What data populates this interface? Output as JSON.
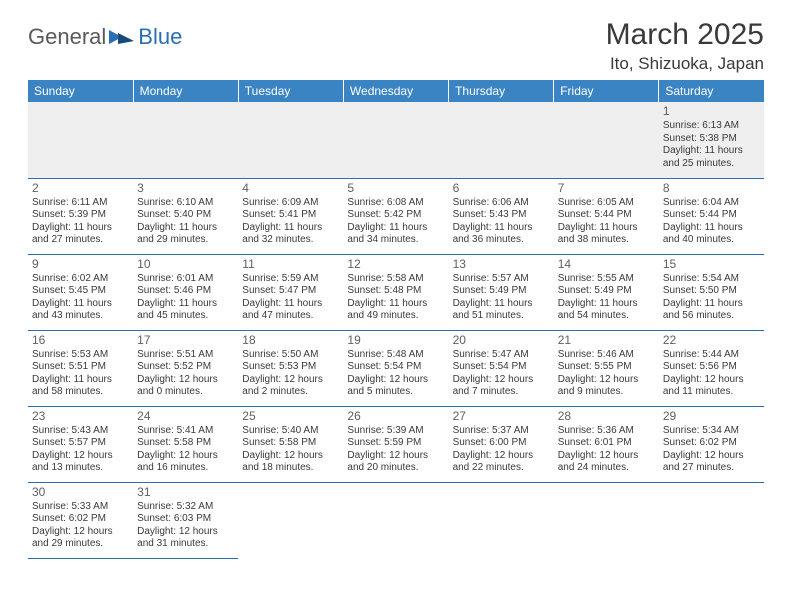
{
  "logo": {
    "part1": "General",
    "part2": "Blue"
  },
  "title": "March 2025",
  "location": "Ito, Shizuoka, Japan",
  "colors": {
    "header_bg": "#3b84c4",
    "header_text": "#ffffff",
    "border": "#2a6fb5",
    "body_text": "#3a3a3a",
    "daynum": "#606060",
    "empty_bg": "#efefef",
    "logo_gray": "#5a5a5a",
    "logo_blue": "#2a6fb5"
  },
  "day_headers": [
    "Sunday",
    "Monday",
    "Tuesday",
    "Wednesday",
    "Thursday",
    "Friday",
    "Saturday"
  ],
  "weeks": [
    [
      null,
      null,
      null,
      null,
      null,
      null,
      {
        "n": "1",
        "sr": "Sunrise: 6:13 AM",
        "ss": "Sunset: 5:38 PM",
        "dl": "Daylight: 11 hours and 25 minutes."
      }
    ],
    [
      {
        "n": "2",
        "sr": "Sunrise: 6:11 AM",
        "ss": "Sunset: 5:39 PM",
        "dl": "Daylight: 11 hours and 27 minutes."
      },
      {
        "n": "3",
        "sr": "Sunrise: 6:10 AM",
        "ss": "Sunset: 5:40 PM",
        "dl": "Daylight: 11 hours and 29 minutes."
      },
      {
        "n": "4",
        "sr": "Sunrise: 6:09 AM",
        "ss": "Sunset: 5:41 PM",
        "dl": "Daylight: 11 hours and 32 minutes."
      },
      {
        "n": "5",
        "sr": "Sunrise: 6:08 AM",
        "ss": "Sunset: 5:42 PM",
        "dl": "Daylight: 11 hours and 34 minutes."
      },
      {
        "n": "6",
        "sr": "Sunrise: 6:06 AM",
        "ss": "Sunset: 5:43 PM",
        "dl": "Daylight: 11 hours and 36 minutes."
      },
      {
        "n": "7",
        "sr": "Sunrise: 6:05 AM",
        "ss": "Sunset: 5:44 PM",
        "dl": "Daylight: 11 hours and 38 minutes."
      },
      {
        "n": "8",
        "sr": "Sunrise: 6:04 AM",
        "ss": "Sunset: 5:44 PM",
        "dl": "Daylight: 11 hours and 40 minutes."
      }
    ],
    [
      {
        "n": "9",
        "sr": "Sunrise: 6:02 AM",
        "ss": "Sunset: 5:45 PM",
        "dl": "Daylight: 11 hours and 43 minutes."
      },
      {
        "n": "10",
        "sr": "Sunrise: 6:01 AM",
        "ss": "Sunset: 5:46 PM",
        "dl": "Daylight: 11 hours and 45 minutes."
      },
      {
        "n": "11",
        "sr": "Sunrise: 5:59 AM",
        "ss": "Sunset: 5:47 PM",
        "dl": "Daylight: 11 hours and 47 minutes."
      },
      {
        "n": "12",
        "sr": "Sunrise: 5:58 AM",
        "ss": "Sunset: 5:48 PM",
        "dl": "Daylight: 11 hours and 49 minutes."
      },
      {
        "n": "13",
        "sr": "Sunrise: 5:57 AM",
        "ss": "Sunset: 5:49 PM",
        "dl": "Daylight: 11 hours and 51 minutes."
      },
      {
        "n": "14",
        "sr": "Sunrise: 5:55 AM",
        "ss": "Sunset: 5:49 PM",
        "dl": "Daylight: 11 hours and 54 minutes."
      },
      {
        "n": "15",
        "sr": "Sunrise: 5:54 AM",
        "ss": "Sunset: 5:50 PM",
        "dl": "Daylight: 11 hours and 56 minutes."
      }
    ],
    [
      {
        "n": "16",
        "sr": "Sunrise: 5:53 AM",
        "ss": "Sunset: 5:51 PM",
        "dl": "Daylight: 11 hours and 58 minutes."
      },
      {
        "n": "17",
        "sr": "Sunrise: 5:51 AM",
        "ss": "Sunset: 5:52 PM",
        "dl": "Daylight: 12 hours and 0 minutes."
      },
      {
        "n": "18",
        "sr": "Sunrise: 5:50 AM",
        "ss": "Sunset: 5:53 PM",
        "dl": "Daylight: 12 hours and 2 minutes."
      },
      {
        "n": "19",
        "sr": "Sunrise: 5:48 AM",
        "ss": "Sunset: 5:54 PM",
        "dl": "Daylight: 12 hours and 5 minutes."
      },
      {
        "n": "20",
        "sr": "Sunrise: 5:47 AM",
        "ss": "Sunset: 5:54 PM",
        "dl": "Daylight: 12 hours and 7 minutes."
      },
      {
        "n": "21",
        "sr": "Sunrise: 5:46 AM",
        "ss": "Sunset: 5:55 PM",
        "dl": "Daylight: 12 hours and 9 minutes."
      },
      {
        "n": "22",
        "sr": "Sunrise: 5:44 AM",
        "ss": "Sunset: 5:56 PM",
        "dl": "Daylight: 12 hours and 11 minutes."
      }
    ],
    [
      {
        "n": "23",
        "sr": "Sunrise: 5:43 AM",
        "ss": "Sunset: 5:57 PM",
        "dl": "Daylight: 12 hours and 13 minutes."
      },
      {
        "n": "24",
        "sr": "Sunrise: 5:41 AM",
        "ss": "Sunset: 5:58 PM",
        "dl": "Daylight: 12 hours and 16 minutes."
      },
      {
        "n": "25",
        "sr": "Sunrise: 5:40 AM",
        "ss": "Sunset: 5:58 PM",
        "dl": "Daylight: 12 hours and 18 minutes."
      },
      {
        "n": "26",
        "sr": "Sunrise: 5:39 AM",
        "ss": "Sunset: 5:59 PM",
        "dl": "Daylight: 12 hours and 20 minutes."
      },
      {
        "n": "27",
        "sr": "Sunrise: 5:37 AM",
        "ss": "Sunset: 6:00 PM",
        "dl": "Daylight: 12 hours and 22 minutes."
      },
      {
        "n": "28",
        "sr": "Sunrise: 5:36 AM",
        "ss": "Sunset: 6:01 PM",
        "dl": "Daylight: 12 hours and 24 minutes."
      },
      {
        "n": "29",
        "sr": "Sunrise: 5:34 AM",
        "ss": "Sunset: 6:02 PM",
        "dl": "Daylight: 12 hours and 27 minutes."
      }
    ],
    [
      {
        "n": "30",
        "sr": "Sunrise: 5:33 AM",
        "ss": "Sunset: 6:02 PM",
        "dl": "Daylight: 12 hours and 29 minutes."
      },
      {
        "n": "31",
        "sr": "Sunrise: 5:32 AM",
        "ss": "Sunset: 6:03 PM",
        "dl": "Daylight: 12 hours and 31 minutes."
      },
      null,
      null,
      null,
      null,
      null
    ]
  ]
}
